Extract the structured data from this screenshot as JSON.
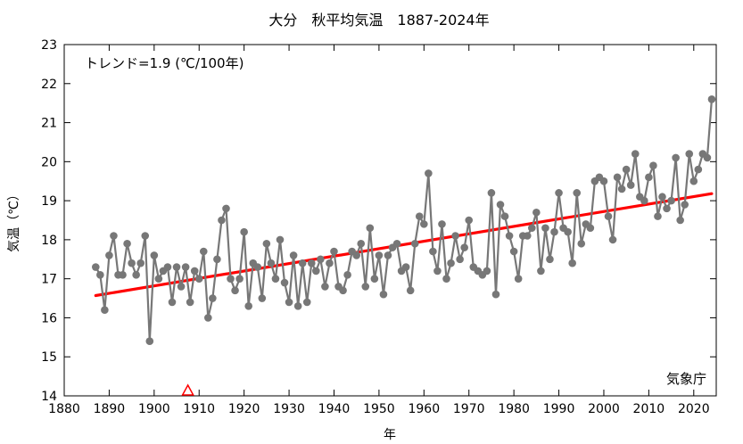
{
  "chart_data": {
    "type": "line",
    "title": "大分　秋平均気温　1887-2024年",
    "xlabel": "年",
    "ylabel": "気温（℃）",
    "trend_label": "トレンド=1.9 (℃/100年)",
    "source_label": "気象庁",
    "xlim": [
      1880,
      2025
    ],
    "ylim": [
      14,
      23
    ],
    "x_ticks": [
      1880,
      1890,
      1900,
      1910,
      1920,
      1930,
      1940,
      1950,
      1960,
      1970,
      1980,
      1990,
      2000,
      2010,
      2020
    ],
    "y_ticks": [
      14,
      15,
      16,
      17,
      18,
      19,
      20,
      21,
      22,
      23
    ],
    "grid": false,
    "series": [
      {
        "color": "#777777",
        "x_start": 1887,
        "x_end": 2024,
        "values": [
          17.3,
          17.1,
          16.2,
          17.6,
          18.1,
          17.1,
          17.1,
          17.9,
          17.4,
          17.1,
          17.4,
          18.1,
          15.4,
          17.6,
          17.0,
          17.2,
          17.3,
          16.4,
          17.3,
          16.8,
          17.3,
          16.4,
          17.2,
          17.0,
          17.7,
          16.0,
          16.5,
          17.5,
          18.5,
          18.8,
          17.0,
          16.7,
          17.0,
          18.2,
          16.3,
          17.4,
          17.3,
          16.5,
          17.9,
          17.4,
          17.0,
          18.0,
          16.9,
          16.4,
          17.6,
          16.3,
          17.4,
          16.4,
          17.4,
          17.2,
          17.5,
          16.8,
          17.4,
          17.7,
          16.8,
          16.7,
          17.1,
          17.7,
          17.6,
          17.9,
          16.8,
          18.3,
          17.0,
          17.6,
          16.6,
          17.6,
          17.8,
          17.9,
          17.2,
          17.3,
          16.7,
          17.9,
          18.6,
          18.4,
          19.7,
          17.7,
          17.2,
          18.4,
          17.0,
          17.4,
          18.1,
          17.5,
          17.8,
          18.5,
          17.3,
          17.2,
          17.1,
          17.2,
          19.2,
          16.6,
          18.9,
          18.6,
          18.1,
          17.7,
          17.0,
          18.1,
          18.1,
          18.3,
          18.7,
          17.2,
          18.3,
          17.5,
          18.2,
          19.2,
          18.3,
          18.2,
          17.4,
          19.2,
          17.9,
          18.4,
          18.3,
          19.5,
          19.6,
          19.5,
          18.6,
          18.0,
          19.6,
          19.3,
          19.8,
          19.4,
          20.2,
          19.1,
          19.0,
          19.6,
          19.9,
          18.6,
          19.1,
          18.8,
          19.0,
          20.1,
          18.5,
          18.9,
          20.2,
          19.5,
          19.8,
          20.2,
          20.1,
          21.6
        ]
      }
    ],
    "trend_line": {
      "color": "#ff0000",
      "x": [
        1887,
        2024
      ],
      "y": [
        16.57,
        19.18
      ]
    },
    "marker": {
      "x": 1907.5,
      "color": "#ff0000",
      "shape": "triangle-outline"
    }
  }
}
